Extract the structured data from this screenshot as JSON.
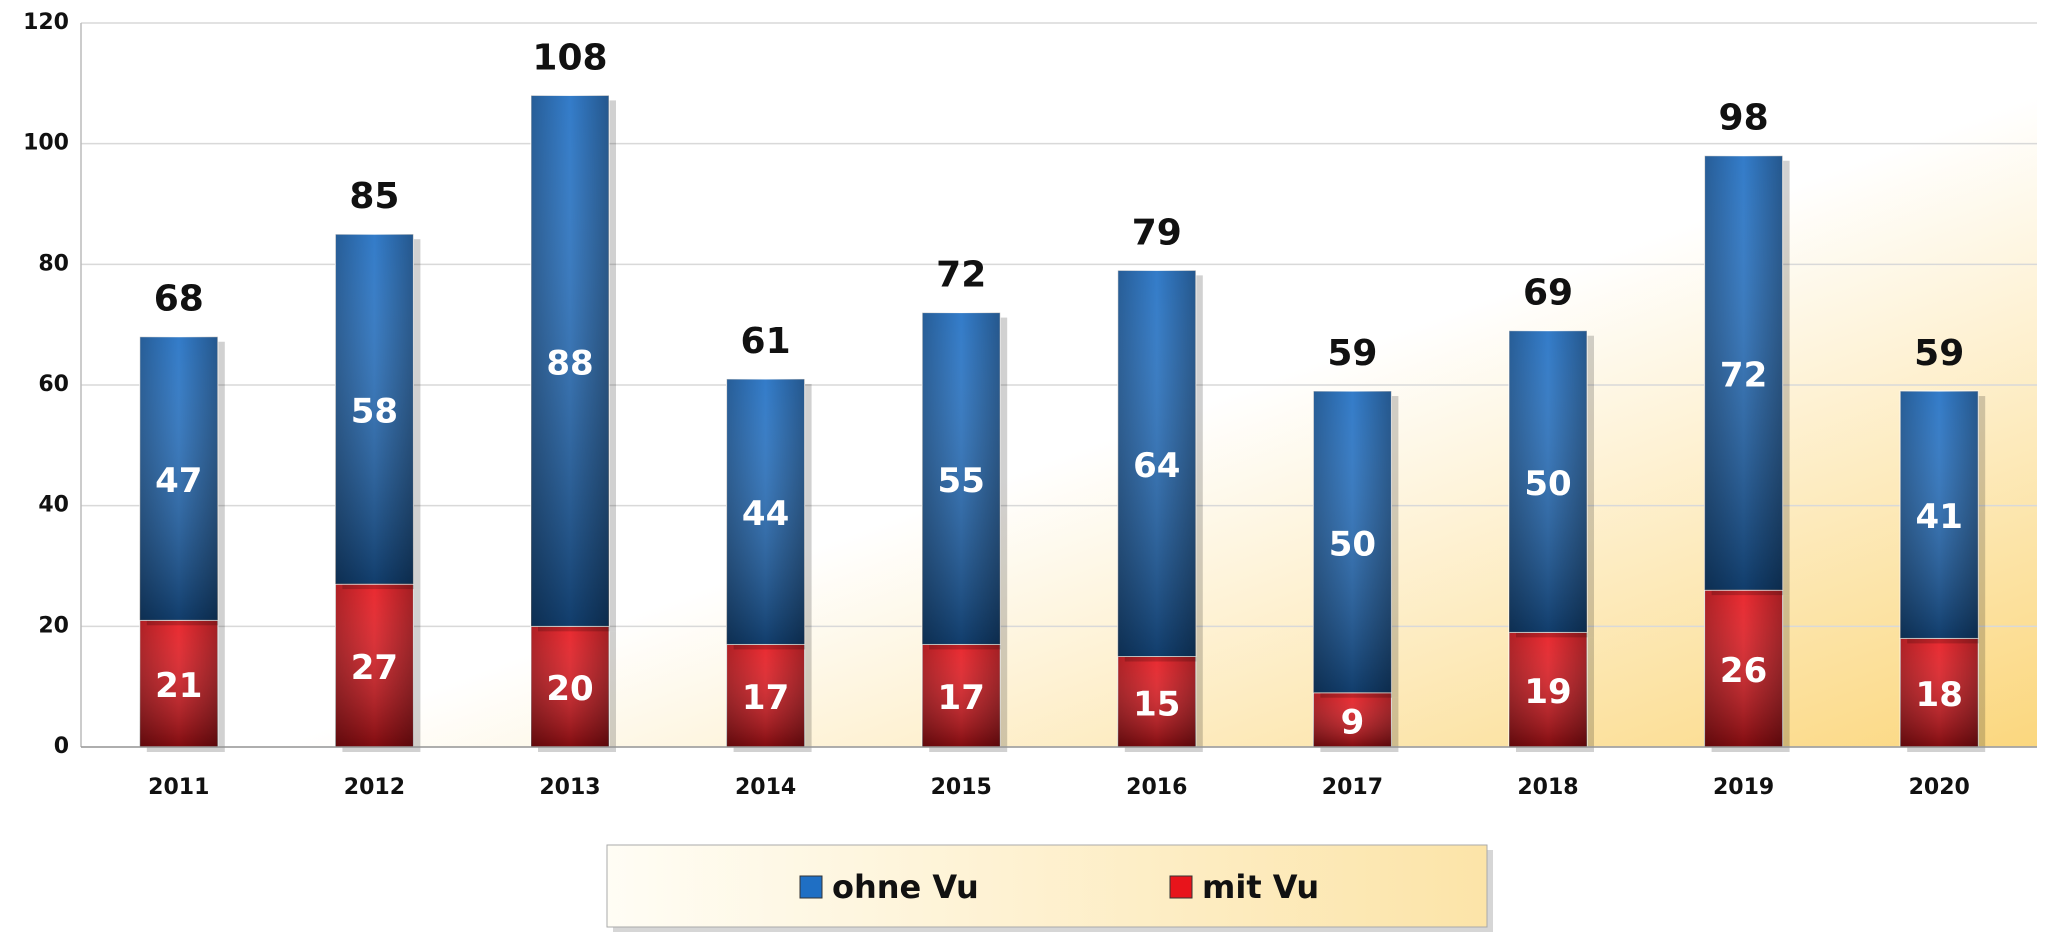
{
  "chart_data": {
    "type": "stacked_bar",
    "categories": [
      "2011",
      "2012",
      "2013",
      "2014",
      "2015",
      "2016",
      "2017",
      "2018",
      "2019",
      "2020"
    ],
    "series": [
      {
        "name": "ohne Vu",
        "color": "#1f6fc4",
        "values": [
          47,
          58,
          88,
          44,
          55,
          64,
          50,
          50,
          72,
          41
        ]
      },
      {
        "name": "mit Vu",
        "color": "#e8141b",
        "values": [
          21,
          27,
          20,
          17,
          17,
          15,
          9,
          19,
          26,
          18
        ]
      }
    ],
    "totals": [
      68,
      85,
      108,
      61,
      72,
      79,
      59,
      69,
      98,
      59
    ],
    "ylim": [
      0,
      120
    ],
    "yticks": [
      0,
      20,
      40,
      60,
      80,
      100,
      120
    ],
    "grid": true,
    "legend": "bottom"
  }
}
